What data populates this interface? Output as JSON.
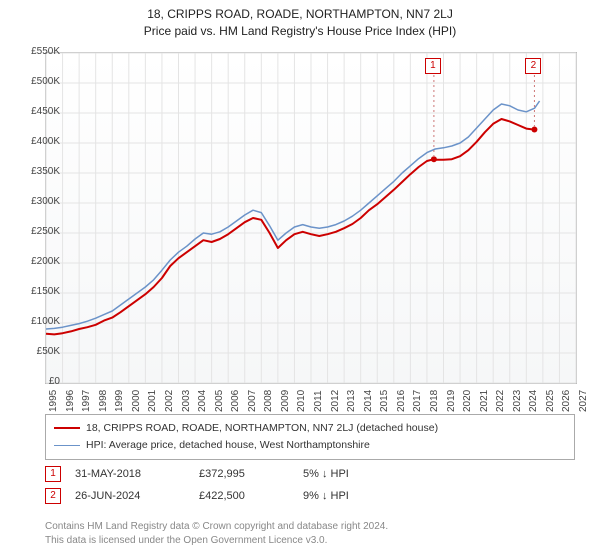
{
  "title_line1": "18, CRIPPS ROAD, ROADE, NORTHAMPTON, NN7 2LJ",
  "title_line2": "Price paid vs. HM Land Registry's House Price Index (HPI)",
  "chart": {
    "type": "line",
    "background_gradient_top": "#ffffff",
    "background_gradient_bottom": "#f6f7f8",
    "grid_color": "#e4e4e4",
    "border_color": "#bbbbbb",
    "y": {
      "min": 0,
      "max": 550000,
      "step": 50000,
      "labels": [
        "£0",
        "£50K",
        "£100K",
        "£150K",
        "£200K",
        "£250K",
        "£300K",
        "£350K",
        "£400K",
        "£450K",
        "£500K",
        "£550K"
      ],
      "label_fontsize": 10,
      "label_color": "#444444"
    },
    "x": {
      "min": 1995,
      "max": 2027,
      "step": 1,
      "labels": [
        "1995",
        "1996",
        "1997",
        "1998",
        "1999",
        "2000",
        "2001",
        "2002",
        "2003",
        "2004",
        "2005",
        "2006",
        "2007",
        "2008",
        "2009",
        "2010",
        "2011",
        "2012",
        "2013",
        "2014",
        "2015",
        "2016",
        "2017",
        "2018",
        "2019",
        "2020",
        "2021",
        "2022",
        "2023",
        "2024",
        "2025",
        "2026",
        "2027"
      ],
      "label_fontsize": 10,
      "label_color": "#444444"
    },
    "series": [
      {
        "id": "property",
        "label": "18, CRIPPS ROAD, ROADE, NORTHAMPTON, NN7 2LJ (detached house)",
        "color": "#cc0000",
        "line_width": 2,
        "data": [
          [
            1995.0,
            82000
          ],
          [
            1995.5,
            81000
          ],
          [
            1996.0,
            83000
          ],
          [
            1996.5,
            86000
          ],
          [
            1997.0,
            90000
          ],
          [
            1997.5,
            93000
          ],
          [
            1998.0,
            97000
          ],
          [
            1998.5,
            104000
          ],
          [
            1999.0,
            109000
          ],
          [
            1999.5,
            118000
          ],
          [
            2000.0,
            128000
          ],
          [
            2000.5,
            138000
          ],
          [
            2001.0,
            148000
          ],
          [
            2001.5,
            160000
          ],
          [
            2002.0,
            175000
          ],
          [
            2002.5,
            195000
          ],
          [
            2003.0,
            208000
          ],
          [
            2003.5,
            218000
          ],
          [
            2004.0,
            228000
          ],
          [
            2004.5,
            238000
          ],
          [
            2005.0,
            235000
          ],
          [
            2005.5,
            240000
          ],
          [
            2006.0,
            248000
          ],
          [
            2006.5,
            258000
          ],
          [
            2007.0,
            268000
          ],
          [
            2007.5,
            275000
          ],
          [
            2008.0,
            272000
          ],
          [
            2008.5,
            250000
          ],
          [
            2009.0,
            225000
          ],
          [
            2009.5,
            238000
          ],
          [
            2010.0,
            248000
          ],
          [
            2010.5,
            252000
          ],
          [
            2011.0,
            248000
          ],
          [
            2011.5,
            245000
          ],
          [
            2012.0,
            248000
          ],
          [
            2012.5,
            252000
          ],
          [
            2013.0,
            258000
          ],
          [
            2013.5,
            265000
          ],
          [
            2014.0,
            275000
          ],
          [
            2014.5,
            288000
          ],
          [
            2015.0,
            298000
          ],
          [
            2015.5,
            310000
          ],
          [
            2016.0,
            322000
          ],
          [
            2016.5,
            335000
          ],
          [
            2017.0,
            348000
          ],
          [
            2017.5,
            360000
          ],
          [
            2018.0,
            370000
          ],
          [
            2018.42,
            372995
          ],
          [
            2018.5,
            372000
          ],
          [
            2019.0,
            372000
          ],
          [
            2019.5,
            373000
          ],
          [
            2020.0,
            378000
          ],
          [
            2020.5,
            388000
          ],
          [
            2021.0,
            402000
          ],
          [
            2021.5,
            418000
          ],
          [
            2022.0,
            432000
          ],
          [
            2022.5,
            440000
          ],
          [
            2023.0,
            436000
          ],
          [
            2023.5,
            430000
          ],
          [
            2024.0,
            424000
          ],
          [
            2024.3,
            423000
          ],
          [
            2024.49,
            422500
          ]
        ]
      },
      {
        "id": "hpi",
        "label": "HPI: Average price, detached house, West Northamptonshire",
        "color": "#6b93c9",
        "line_width": 1.5,
        "data": [
          [
            1995.0,
            90000
          ],
          [
            1995.5,
            91000
          ],
          [
            1996.0,
            93000
          ],
          [
            1996.5,
            96000
          ],
          [
            1997.0,
            99000
          ],
          [
            1997.5,
            103000
          ],
          [
            1998.0,
            108000
          ],
          [
            1998.5,
            114000
          ],
          [
            1999.0,
            120000
          ],
          [
            1999.5,
            130000
          ],
          [
            2000.0,
            140000
          ],
          [
            2000.5,
            150000
          ],
          [
            2001.0,
            160000
          ],
          [
            2001.5,
            172000
          ],
          [
            2002.0,
            188000
          ],
          [
            2002.5,
            205000
          ],
          [
            2003.0,
            218000
          ],
          [
            2003.5,
            228000
          ],
          [
            2004.0,
            240000
          ],
          [
            2004.5,
            250000
          ],
          [
            2005.0,
            248000
          ],
          [
            2005.5,
            252000
          ],
          [
            2006.0,
            260000
          ],
          [
            2006.5,
            270000
          ],
          [
            2007.0,
            280000
          ],
          [
            2007.5,
            288000
          ],
          [
            2008.0,
            284000
          ],
          [
            2008.5,
            262000
          ],
          [
            2009.0,
            238000
          ],
          [
            2009.5,
            250000
          ],
          [
            2010.0,
            260000
          ],
          [
            2010.5,
            264000
          ],
          [
            2011.0,
            260000
          ],
          [
            2011.5,
            258000
          ],
          [
            2012.0,
            260000
          ],
          [
            2012.5,
            264000
          ],
          [
            2013.0,
            270000
          ],
          [
            2013.5,
            278000
          ],
          [
            2014.0,
            288000
          ],
          [
            2014.5,
            300000
          ],
          [
            2015.0,
            312000
          ],
          [
            2015.5,
            324000
          ],
          [
            2016.0,
            336000
          ],
          [
            2016.5,
            350000
          ],
          [
            2017.0,
            362000
          ],
          [
            2017.5,
            374000
          ],
          [
            2018.0,
            384000
          ],
          [
            2018.5,
            390000
          ],
          [
            2019.0,
            392000
          ],
          [
            2019.5,
            395000
          ],
          [
            2020.0,
            400000
          ],
          [
            2020.5,
            410000
          ],
          [
            2021.0,
            425000
          ],
          [
            2021.5,
            440000
          ],
          [
            2022.0,
            455000
          ],
          [
            2022.5,
            465000
          ],
          [
            2023.0,
            462000
          ],
          [
            2023.5,
            455000
          ],
          [
            2024.0,
            452000
          ],
          [
            2024.5,
            458000
          ],
          [
            2024.8,
            470000
          ]
        ]
      }
    ],
    "sale_markers": [
      {
        "n": "1",
        "year": 2018.42,
        "price": 372995
      },
      {
        "n": "2",
        "year": 2024.49,
        "price": 422500
      }
    ],
    "marker_border_color": "#cc0000",
    "marker_text_color": "#cc0000",
    "point_fill": "#cc0000",
    "point_radius": 3
  },
  "legend": {
    "border_color": "#aaaaaa",
    "fontsize": 10.5,
    "text_color": "#333333"
  },
  "sales": [
    {
      "n": "1",
      "date": "31-MAY-2018",
      "price": "£372,995",
      "pct": "5% ↓ HPI"
    },
    {
      "n": "2",
      "date": "26-JUN-2024",
      "price": "£422,500",
      "pct": "9% ↓ HPI"
    }
  ],
  "footnote_line1": "Contains HM Land Registry data © Crown copyright and database right 2024.",
  "footnote_line2": "This data is licensed under the Open Government Licence v3.0.",
  "footnote_color": "#888888"
}
